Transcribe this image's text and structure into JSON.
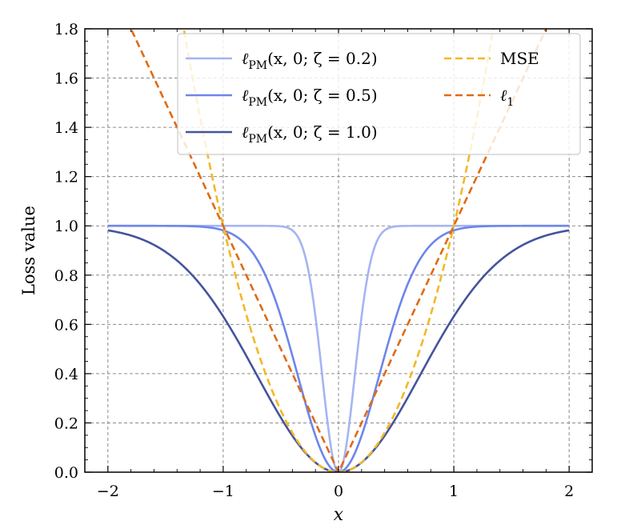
{
  "chart_data": {
    "type": "line",
    "title": "",
    "xlabel": "x",
    "ylabel": "Loss value",
    "xlim": [
      -2.2,
      2.2
    ],
    "ylim": [
      0,
      1.8
    ],
    "xticks": [
      -2,
      -1,
      0,
      1,
      2
    ],
    "xtick_labels": [
      "−2",
      "−1",
      "0",
      "1",
      "2"
    ],
    "yticks": [
      0,
      0.2,
      0.4,
      0.6,
      0.8,
      1.0,
      1.2,
      1.4,
      1.6,
      1.8
    ],
    "ytick_labels": [
      "0.0",
      "0.2",
      "0.4",
      "0.6",
      "0.8",
      "1.0",
      "1.2",
      "1.4",
      "1.6",
      "1.8"
    ],
    "grid": true,
    "legend_position": "top",
    "series": [
      {
        "name": "ℓPM(x, 0; ζ = 0.2)",
        "legend_text": "ℓ",
        "legend_sub": "PM",
        "legend_rest": "(x, 0; ζ = 0.2)",
        "kind": "pm",
        "zeta": 0.2,
        "color": "#a5b4f3",
        "dash": "solid",
        "x": [
          -2,
          -1.5,
          -1,
          -0.5,
          -0.4,
          -0.3,
          -0.2,
          -0.1,
          0,
          0.1,
          0.2,
          0.3,
          0.4,
          0.5,
          1,
          1.5,
          2
        ],
        "y": [
          1.0,
          1.0,
          1.0,
          0.998,
          0.982,
          0.895,
          0.632,
          0.221,
          0.0,
          0.221,
          0.632,
          0.895,
          0.982,
          0.998,
          1.0,
          1.0,
          1.0
        ]
      },
      {
        "name": "ℓPM(x, 0; ζ = 0.5)",
        "legend_text": "ℓ",
        "legend_sub": "PM",
        "legend_rest": "(x, 0; ζ = 0.5)",
        "kind": "pm",
        "zeta": 0.5,
        "color": "#6d86ea",
        "dash": "solid",
        "x": [
          -2,
          -1.5,
          -1,
          -0.5,
          -0.25,
          0,
          0.25,
          0.5,
          1,
          1.5,
          2
        ],
        "y": [
          1.0,
          1.0,
          0.982,
          0.632,
          0.221,
          0.0,
          0.221,
          0.632,
          0.982,
          1.0,
          1.0
        ]
      },
      {
        "name": "ℓPM(x, 0; ζ = 1.0)",
        "legend_text": "ℓ",
        "legend_sub": "PM",
        "legend_rest": "(x, 0; ζ = 1.0)",
        "kind": "pm",
        "zeta": 1.0,
        "color": "#44549c",
        "dash": "solid",
        "x": [
          -2,
          -1.5,
          -1,
          -0.5,
          0,
          0.5,
          1,
          1.5,
          2
        ],
        "y": [
          0.982,
          0.895,
          0.632,
          0.221,
          0.0,
          0.221,
          0.632,
          0.895,
          0.982
        ]
      },
      {
        "name": "MSE",
        "legend_text": "MSE",
        "legend_sub": "",
        "legend_rest": "",
        "kind": "mse",
        "color": "#f2b827",
        "dash": "dashed",
        "x": [
          -1.34,
          -1,
          -0.5,
          0,
          0.5,
          1,
          1.34
        ],
        "y": [
          1.8,
          1.0,
          0.25,
          0.0,
          0.25,
          1.0,
          1.8
        ]
      },
      {
        "name": "ℓ1",
        "legend_text": "ℓ",
        "legend_sub": "1",
        "legend_rest": "",
        "kind": "l1",
        "color": "#e16a15",
        "dash": "dashed",
        "x": [
          -1.8,
          -1,
          0,
          1,
          1.8
        ],
        "y": [
          1.8,
          1.0,
          0.0,
          1.0,
          1.8
        ]
      }
    ]
  }
}
